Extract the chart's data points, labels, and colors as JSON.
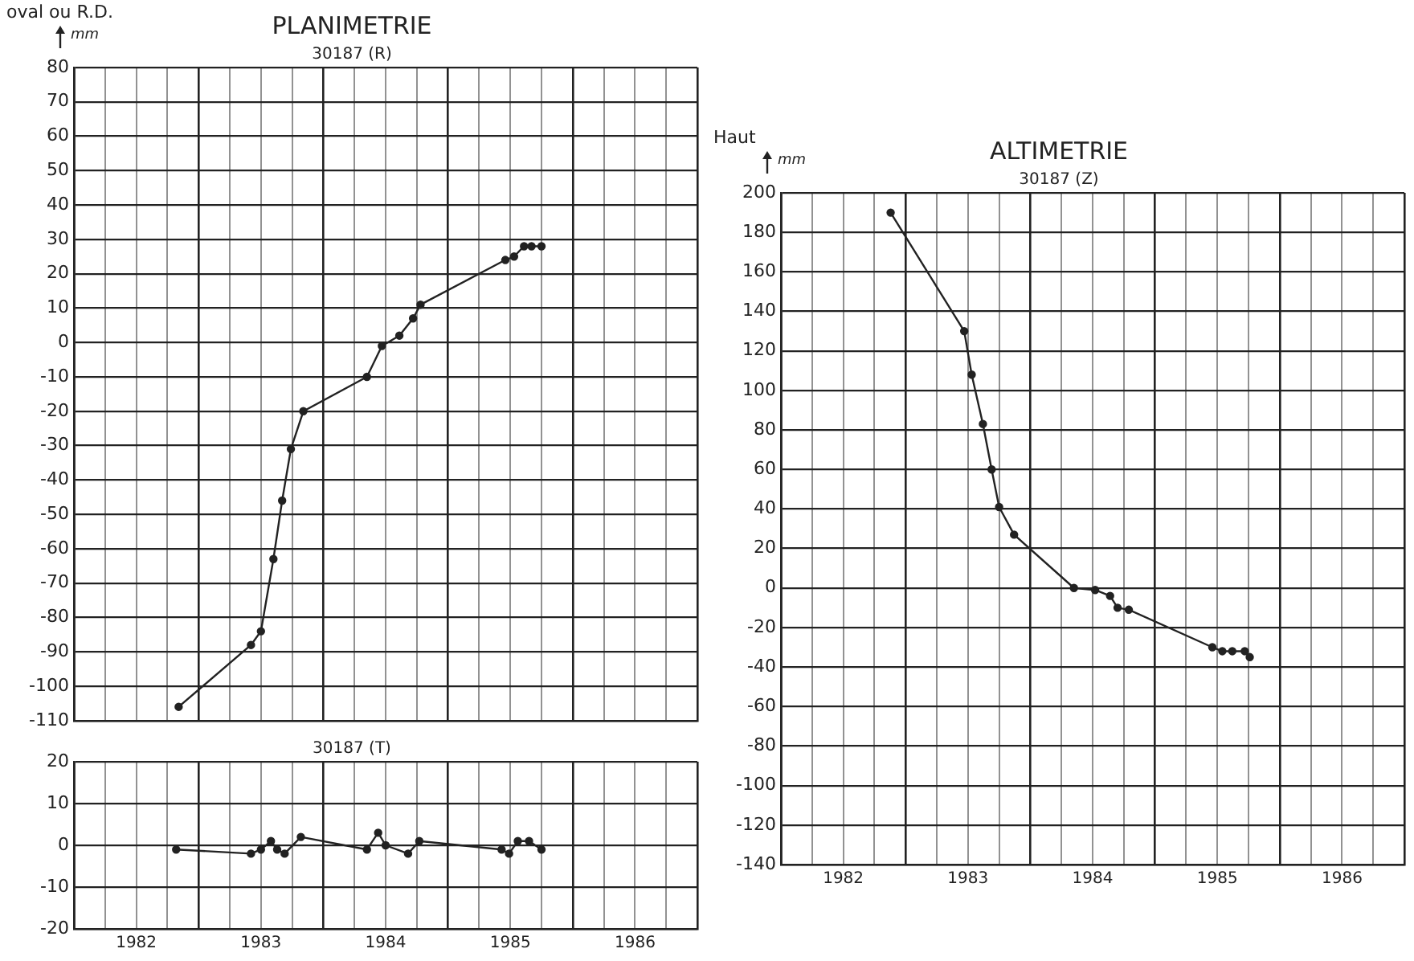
{
  "chart_data": [
    {
      "type": "line",
      "title": "PLANIMETRIE",
      "subtitle": "30187 (R)",
      "ylabel": "oval ou R.D.",
      "annotations": [
        "mm"
      ],
      "color": "#222222",
      "marker": "circle",
      "grid": true,
      "tick_labels": "y",
      "x": [
        1982.84,
        1983.42,
        1983.5,
        1983.6,
        1983.67,
        1983.74,
        1983.84,
        1984.35,
        1984.47,
        1984.61,
        1984.72,
        1984.78,
        1985.46,
        1985.53,
        1985.61,
        1985.67,
        1985.75
      ],
      "values": [
        -106,
        -88,
        -84,
        -63,
        -46,
        -31,
        -20,
        -10,
        -1,
        2,
        7,
        11,
        24,
        25,
        28,
        28,
        28
      ],
      "xlim": [
        1982,
        1987
      ],
      "xticks": [
        {
          "value": 1982,
          "label": null
        },
        {
          "value": 1982.25,
          "label": null
        },
        {
          "value": 1982.5,
          "label": null
        },
        {
          "value": 1982.75,
          "label": null
        },
        {
          "value": 1983,
          "label": null
        },
        {
          "value": 1983.25,
          "label": null
        },
        {
          "value": 1983.5,
          "label": null
        },
        {
          "value": 1983.75,
          "label": null
        },
        {
          "value": 1984,
          "label": null
        },
        {
          "value": 1984.25,
          "label": null
        },
        {
          "value": 1984.5,
          "label": null
        },
        {
          "value": 1984.75,
          "label": null
        },
        {
          "value": 1985,
          "label": null
        },
        {
          "value": 1985.25,
          "label": null
        },
        {
          "value": 1985.5,
          "label": null
        },
        {
          "value": 1985.75,
          "label": null
        },
        {
          "value": 1986,
          "label": null
        },
        {
          "value": 1986.25,
          "label": null
        },
        {
          "value": 1986.5,
          "label": null
        },
        {
          "value": 1986.75,
          "label": null
        },
        {
          "value": 1987,
          "label": null
        }
      ],
      "ylim": [
        -110,
        80
      ],
      "yticks": [
        -110,
        -100,
        -90,
        -80,
        -70,
        -60,
        -50,
        -40,
        -30,
        -20,
        -10,
        0,
        10,
        20,
        30,
        40,
        50,
        60,
        70,
        80
      ]
    },
    {
      "type": "line",
      "title": "30187 (T)",
      "color": "#222222",
      "marker": "circle",
      "grid": true,
      "x": [
        1982.82,
        1983.42,
        1983.5,
        1983.58,
        1983.63,
        1983.69,
        1983.82,
        1984.35,
        1984.44,
        1984.5,
        1984.68,
        1984.77,
        1985.43,
        1985.49,
        1985.56,
        1985.65,
        1985.75
      ],
      "values": [
        -1,
        -2,
        -1,
        1,
        -1,
        -2,
        2,
        -1,
        3,
        0,
        -2,
        1,
        -1,
        -2,
        1,
        1,
        -1
      ],
      "xlim": [
        1982,
        1987
      ],
      "xticks": [
        {
          "value": 1982,
          "label": null
        },
        {
          "value": 1982.25,
          "label": null
        },
        {
          "value": 1982.5,
          "label": "1982"
        },
        {
          "value": 1982.75,
          "label": null
        },
        {
          "value": 1983,
          "label": null
        },
        {
          "value": 1983.25,
          "label": null
        },
        {
          "value": 1983.5,
          "label": "1983"
        },
        {
          "value": 1983.75,
          "label": null
        },
        {
          "value": 1984,
          "label": null
        },
        {
          "value": 1984.25,
          "label": null
        },
        {
          "value": 1984.5,
          "label": "1984"
        },
        {
          "value": 1984.75,
          "label": null
        },
        {
          "value": 1985,
          "label": null
        },
        {
          "value": 1985.25,
          "label": null
        },
        {
          "value": 1985.5,
          "label": "1985"
        },
        {
          "value": 1985.75,
          "label": null
        },
        {
          "value": 1986,
          "label": null
        },
        {
          "value": 1986.25,
          "label": null
        },
        {
          "value": 1986.5,
          "label": "1986"
        },
        {
          "value": 1986.75,
          "label": null
        },
        {
          "value": 1987,
          "label": null
        }
      ],
      "ylim": [
        -20,
        20
      ],
      "yticks": [
        -20,
        -10,
        0,
        10,
        20
      ]
    },
    {
      "type": "line",
      "title": "ALTIMETRIE",
      "subtitle": "30187 (Z)",
      "ylabel": "Haut",
      "annotations": [
        "mm"
      ],
      "color": "#222222",
      "marker": "circle",
      "grid": true,
      "x": [
        1982.88,
        1983.47,
        1983.53,
        1983.62,
        1983.69,
        1983.75,
        1983.87,
        1984.35,
        1984.52,
        1984.64,
        1984.7,
        1984.79,
        1985.46,
        1985.54,
        1985.62,
        1985.72,
        1985.76
      ],
      "values": [
        190,
        130,
        108,
        83,
        60,
        41,
        27,
        0,
        -1,
        -4,
        -10,
        -11,
        -30,
        -32,
        -32,
        -32,
        -35
      ],
      "xlim": [
        1982,
        1987
      ],
      "xticks": [
        {
          "value": 1982,
          "label": null
        },
        {
          "value": 1982.25,
          "label": null
        },
        {
          "value": 1982.5,
          "label": "1982"
        },
        {
          "value": 1982.75,
          "label": null
        },
        {
          "value": 1983,
          "label": null
        },
        {
          "value": 1983.25,
          "label": null
        },
        {
          "value": 1983.5,
          "label": "1983"
        },
        {
          "value": 1983.75,
          "label": null
        },
        {
          "value": 1984,
          "label": null
        },
        {
          "value": 1984.25,
          "label": null
        },
        {
          "value": 1984.5,
          "label": "1984"
        },
        {
          "value": 1984.75,
          "label": null
        },
        {
          "value": 1985,
          "label": null
        },
        {
          "value": 1985.25,
          "label": null
        },
        {
          "value": 1985.5,
          "label": "1985"
        },
        {
          "value": 1985.75,
          "label": null
        },
        {
          "value": 1986,
          "label": null
        },
        {
          "value": 1986.25,
          "label": null
        },
        {
          "value": 1986.5,
          "label": "1986"
        },
        {
          "value": 1986.75,
          "label": null
        },
        {
          "value": 1987,
          "label": null
        }
      ],
      "ylim": [
        -140,
        200
      ],
      "yticks": [
        -140,
        -120,
        -100,
        -80,
        -60,
        -40,
        -20,
        0,
        20,
        40,
        60,
        80,
        100,
        120,
        140,
        160,
        180,
        200
      ]
    }
  ]
}
